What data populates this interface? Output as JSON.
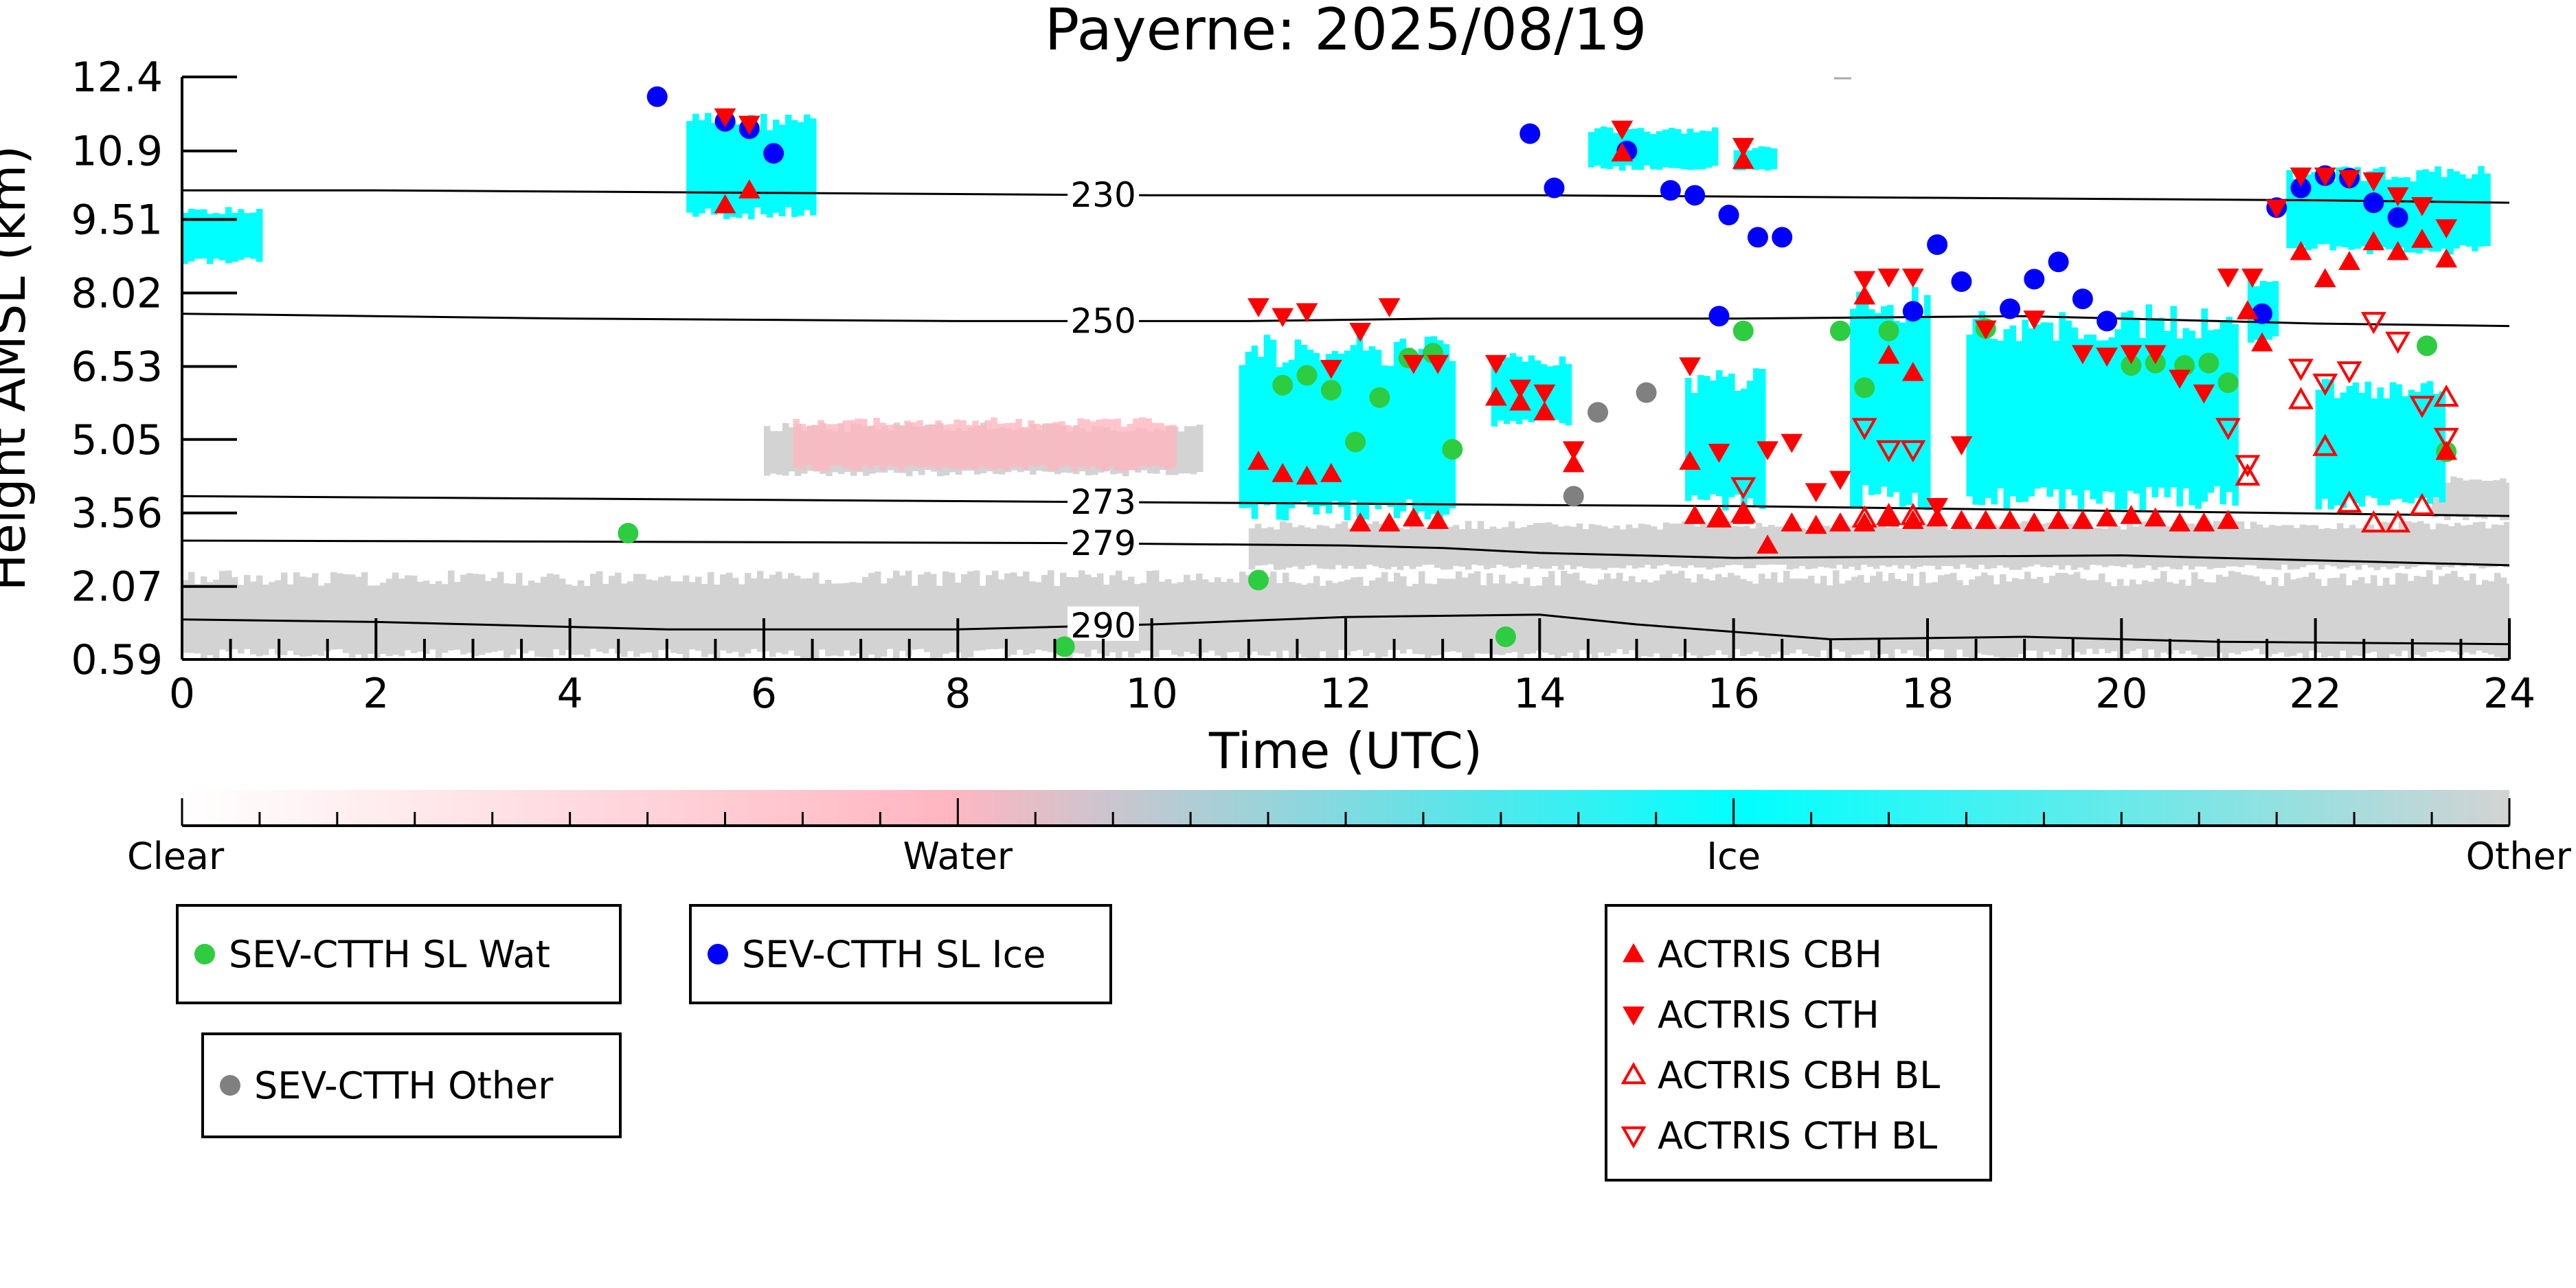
{
  "chart_data": {
    "type": "scatter",
    "title": "Payerne: 2025/08/19",
    "xlabel": "Time (UTC)",
    "ylabel": "Height AMSL (km)",
    "xlim": [
      0,
      24
    ],
    "ylim": [
      0.59,
      12.4
    ],
    "x_ticks": [
      0,
      2,
      4,
      6,
      8,
      10,
      12,
      14,
      16,
      18,
      20,
      22,
      24
    ],
    "y_ticks": [
      0.59,
      2.07,
      3.56,
      5.05,
      6.53,
      8.02,
      9.51,
      10.9,
      12.4
    ],
    "y_tick_labels": [
      "0.59",
      "2.07",
      "3.56",
      "5.05",
      "6.53",
      "8.02",
      "9.51",
      "10.9",
      "12.4"
    ],
    "colorbar": {
      "labels": [
        "Clear",
        "Water",
        "Ice",
        "Other"
      ],
      "colors": [
        "#ffffff",
        "#ffb6c1",
        "#00ffff",
        "#d3d3d3"
      ]
    },
    "cloud_regions": [
      {
        "class": "Ice",
        "x0": 5.2,
        "x1": 6.5,
        "y0": 9.5,
        "y1": 11.7
      },
      {
        "class": "Ice",
        "x0": 0.0,
        "x1": 0.8,
        "y0": 8.6,
        "y1": 9.8
      },
      {
        "class": "Ice",
        "x0": 10.9,
        "x1": 13.1,
        "y0": 3.4,
        "y1": 7.2
      },
      {
        "class": "Ice",
        "x0": 13.5,
        "x1": 14.3,
        "y0": 5.3,
        "y1": 6.8
      },
      {
        "class": "Ice",
        "x0": 15.5,
        "x1": 16.3,
        "y0": 3.6,
        "y1": 6.5
      },
      {
        "class": "Ice",
        "x0": 17.2,
        "x1": 18.0,
        "y0": 3.6,
        "y1": 8.2
      },
      {
        "class": "Ice",
        "x0": 18.4,
        "x1": 21.2,
        "y0": 3.6,
        "y1": 7.8
      },
      {
        "class": "Ice",
        "x0": 21.3,
        "x1": 21.6,
        "y0": 7.0,
        "y1": 8.3
      },
      {
        "class": "Ice",
        "x0": 21.7,
        "x1": 23.8,
        "y0": 8.8,
        "y1": 10.6
      },
      {
        "class": "Ice",
        "x0": 22.0,
        "x1": 23.3,
        "y0": 3.6,
        "y1": 6.3
      },
      {
        "class": "Ice",
        "x0": 14.5,
        "x1": 15.8,
        "y0": 10.5,
        "y1": 11.4
      },
      {
        "class": "Ice",
        "x0": 16.0,
        "x1": 16.4,
        "y0": 10.5,
        "y1": 11.0
      },
      {
        "class": "Water",
        "x0": 6.3,
        "x1": 10.2,
        "y0": 4.4,
        "y1": 5.5
      },
      {
        "class": "Other",
        "x0": 6.0,
        "x1": 10.5,
        "y0": 4.3,
        "y1": 5.4
      },
      {
        "class": "Other",
        "x0": 0.0,
        "x1": 24.0,
        "y0": 0.59,
        "y1": 2.4
      },
      {
        "class": "Other",
        "x0": 11.0,
        "x1": 24.0,
        "y0": 2.4,
        "y1": 3.4
      },
      {
        "class": "Other",
        "x0": 23.2,
        "x1": 24.0,
        "y0": 3.4,
        "y1": 4.3
      }
    ],
    "contours": [
      {
        "label": "230",
        "label_x": 9.5,
        "points": [
          [
            0,
            10.1
          ],
          [
            2,
            10.1
          ],
          [
            6,
            10.05
          ],
          [
            10,
            10.0
          ],
          [
            14,
            10.0
          ],
          [
            18,
            9.95
          ],
          [
            22,
            9.9
          ],
          [
            24,
            9.85
          ]
        ]
      },
      {
        "label": "250",
        "label_x": 9.5,
        "points": [
          [
            0,
            7.6
          ],
          [
            4,
            7.5
          ],
          [
            8,
            7.45
          ],
          [
            11,
            7.45
          ],
          [
            13,
            7.5
          ],
          [
            16,
            7.5
          ],
          [
            19,
            7.55
          ],
          [
            22,
            7.4
          ],
          [
            24,
            7.35
          ]
        ]
      },
      {
        "label": "273",
        "label_x": 9.5,
        "points": [
          [
            0,
            3.9
          ],
          [
            4,
            3.85
          ],
          [
            8,
            3.8
          ],
          [
            12,
            3.75
          ],
          [
            14,
            3.72
          ],
          [
            16,
            3.7
          ],
          [
            20,
            3.6
          ],
          [
            24,
            3.5
          ]
        ]
      },
      {
        "label": "279",
        "label_x": 9.5,
        "points": [
          [
            0,
            3.0
          ],
          [
            4,
            2.98
          ],
          [
            9,
            2.95
          ],
          [
            12,
            2.9
          ],
          [
            13,
            2.85
          ],
          [
            14,
            2.75
          ],
          [
            16,
            2.65
          ],
          [
            20,
            2.7
          ],
          [
            22,
            2.6
          ],
          [
            24,
            2.5
          ]
        ]
      },
      {
        "label": "290",
        "label_x": 9.5,
        "points": [
          [
            0,
            1.4
          ],
          [
            2,
            1.35
          ],
          [
            5,
            1.2
          ],
          [
            8,
            1.2
          ],
          [
            10,
            1.3
          ],
          [
            12,
            1.45
          ],
          [
            14,
            1.5
          ],
          [
            15,
            1.3
          ],
          [
            17,
            1.0
          ],
          [
            19,
            1.05
          ],
          [
            21,
            0.95
          ],
          [
            24,
            0.9
          ]
        ]
      }
    ],
    "series": [
      {
        "name": "SEV-CTTH SL Wat",
        "marker": "circle",
        "color": "#2ecc40",
        "points": [
          [
            4.6,
            3.15
          ],
          [
            9.1,
            0.85
          ],
          [
            11.1,
            2.2
          ],
          [
            11.35,
            6.15
          ],
          [
            11.6,
            6.35
          ],
          [
            11.85,
            6.05
          ],
          [
            12.1,
            5.0
          ],
          [
            12.35,
            5.9
          ],
          [
            12.65,
            6.7
          ],
          [
            12.9,
            6.8
          ],
          [
            13.1,
            4.85
          ],
          [
            13.65,
            1.05
          ],
          [
            16.1,
            7.25
          ],
          [
            17.1,
            7.25
          ],
          [
            17.35,
            6.1
          ],
          [
            17.6,
            7.25
          ],
          [
            18.6,
            7.3
          ],
          [
            20.1,
            6.55
          ],
          [
            20.35,
            6.6
          ],
          [
            20.65,
            6.55
          ],
          [
            20.9,
            6.6
          ],
          [
            21.1,
            6.2
          ],
          [
            23.15,
            6.95
          ],
          [
            23.35,
            4.8
          ]
        ]
      },
      {
        "name": "SEV-CTTH SL Ice",
        "marker": "circle",
        "color": "#0000ff",
        "points": [
          [
            4.9,
            12.0
          ],
          [
            5.6,
            11.5
          ],
          [
            5.85,
            11.35
          ],
          [
            6.1,
            10.85
          ],
          [
            13.9,
            11.25
          ],
          [
            14.15,
            10.15
          ],
          [
            14.9,
            10.9
          ],
          [
            15.35,
            10.1
          ],
          [
            15.6,
            10.0
          ],
          [
            15.85,
            7.55
          ],
          [
            15.95,
            9.6
          ],
          [
            16.25,
            9.15
          ],
          [
            16.5,
            9.15
          ],
          [
            17.85,
            7.65
          ],
          [
            18.1,
            9.0
          ],
          [
            18.35,
            8.25
          ],
          [
            18.85,
            7.7
          ],
          [
            19.1,
            8.3
          ],
          [
            19.35,
            8.65
          ],
          [
            19.6,
            7.9
          ],
          [
            19.85,
            7.45
          ],
          [
            21.45,
            7.6
          ],
          [
            21.6,
            9.75
          ],
          [
            21.85,
            10.15
          ],
          [
            22.1,
            10.4
          ],
          [
            22.35,
            10.35
          ],
          [
            22.6,
            9.85
          ],
          [
            22.85,
            9.55
          ]
        ]
      },
      {
        "name": "SEV-CTTH Other",
        "marker": "circle",
        "color": "#808080",
        "points": [
          [
            14.35,
            3.9
          ],
          [
            14.6,
            5.6
          ],
          [
            15.1,
            6.0
          ]
        ]
      },
      {
        "name": "ACTRIS CBH",
        "marker": "triangle-up",
        "color": "#ff0000",
        "filled": true,
        "points": [
          [
            5.6,
            9.8
          ],
          [
            5.85,
            10.1
          ],
          [
            14.85,
            10.85
          ],
          [
            16.1,
            10.7
          ],
          [
            11.1,
            4.6
          ],
          [
            11.35,
            4.35
          ],
          [
            11.6,
            4.3
          ],
          [
            11.85,
            4.35
          ],
          [
            12.15,
            3.35
          ],
          [
            12.45,
            3.35
          ],
          [
            12.7,
            3.45
          ],
          [
            12.95,
            3.4
          ],
          [
            13.55,
            5.9
          ],
          [
            13.8,
            5.8
          ],
          [
            14.05,
            5.6
          ],
          [
            14.35,
            4.55
          ],
          [
            15.55,
            4.6
          ],
          [
            15.6,
            3.5
          ],
          [
            15.85,
            3.45
          ],
          [
            16.1,
            3.5
          ],
          [
            16.35,
            2.9
          ],
          [
            16.6,
            3.35
          ],
          [
            16.85,
            3.3
          ],
          [
            17.1,
            3.35
          ],
          [
            17.35,
            3.35
          ],
          [
            17.35,
            7.95
          ],
          [
            17.6,
            3.45
          ],
          [
            17.6,
            6.75
          ],
          [
            17.85,
            3.4
          ],
          [
            17.85,
            6.4
          ],
          [
            18.1,
            3.45
          ],
          [
            18.35,
            3.4
          ],
          [
            18.6,
            3.4
          ],
          [
            18.85,
            3.4
          ],
          [
            19.1,
            3.35
          ],
          [
            19.35,
            3.4
          ],
          [
            19.6,
            3.4
          ],
          [
            19.85,
            3.45
          ],
          [
            20.1,
            3.5
          ],
          [
            20.35,
            3.45
          ],
          [
            20.6,
            3.35
          ],
          [
            20.85,
            3.35
          ],
          [
            21.1,
            3.4
          ],
          [
            21.3,
            7.65
          ],
          [
            21.45,
            7.0
          ],
          [
            21.85,
            8.85
          ],
          [
            22.1,
            8.3
          ],
          [
            22.35,
            8.65
          ],
          [
            22.6,
            9.05
          ],
          [
            22.85,
            8.85
          ],
          [
            23.1,
            9.1
          ],
          [
            23.35,
            8.7
          ],
          [
            23.35,
            4.8
          ]
        ]
      },
      {
        "name": "ACTRIS CTH",
        "marker": "triangle-down",
        "color": "#ff0000",
        "filled": true,
        "points": [
          [
            5.6,
            11.6
          ],
          [
            5.85,
            11.45
          ],
          [
            14.85,
            11.35
          ],
          [
            16.1,
            11.0
          ],
          [
            11.1,
            7.75
          ],
          [
            11.35,
            7.55
          ],
          [
            11.6,
            7.65
          ],
          [
            11.85,
            6.5
          ],
          [
            12.15,
            7.25
          ],
          [
            12.45,
            7.75
          ],
          [
            12.7,
            6.6
          ],
          [
            12.95,
            6.6
          ],
          [
            13.55,
            6.6
          ],
          [
            13.8,
            6.1
          ],
          [
            14.05,
            6.0
          ],
          [
            14.35,
            4.85
          ],
          [
            15.55,
            6.55
          ],
          [
            15.85,
            4.8
          ],
          [
            16.35,
            4.85
          ],
          [
            16.6,
            5.0
          ],
          [
            16.85,
            4.0
          ],
          [
            17.1,
            4.25
          ],
          [
            17.35,
            8.3
          ],
          [
            17.6,
            8.35
          ],
          [
            17.85,
            8.35
          ],
          [
            18.1,
            3.7
          ],
          [
            18.35,
            4.95
          ],
          [
            18.6,
            7.3
          ],
          [
            19.1,
            7.5
          ],
          [
            19.6,
            6.8
          ],
          [
            19.85,
            6.75
          ],
          [
            20.1,
            6.8
          ],
          [
            20.35,
            6.8
          ],
          [
            20.6,
            6.3
          ],
          [
            20.85,
            6.0
          ],
          [
            21.1,
            8.35
          ],
          [
            21.35,
            8.35
          ],
          [
            21.6,
            9.75
          ],
          [
            21.85,
            10.4
          ],
          [
            22.1,
            10.4
          ],
          [
            22.35,
            10.35
          ],
          [
            22.6,
            10.3
          ],
          [
            22.85,
            10.0
          ],
          [
            23.1,
            9.8
          ],
          [
            23.35,
            9.35
          ]
        ]
      },
      {
        "name": "ACTRIS CBH BL",
        "marker": "triangle-up",
        "color": "#ff0000",
        "filled": false,
        "points": [
          [
            15.85,
            3.45
          ],
          [
            16.1,
            3.55
          ],
          [
            17.35,
            3.45
          ],
          [
            17.6,
            3.5
          ],
          [
            17.85,
            3.5
          ],
          [
            21.3,
            4.3
          ],
          [
            21.85,
            5.85
          ],
          [
            22.1,
            4.9
          ],
          [
            22.35,
            3.75
          ],
          [
            22.6,
            3.35
          ],
          [
            22.85,
            3.35
          ],
          [
            23.1,
            3.7
          ],
          [
            23.35,
            5.9
          ]
        ]
      },
      {
        "name": "ACTRIS CTH BL",
        "marker": "triangle-down",
        "color": "#ff0000",
        "filled": false,
        "points": [
          [
            16.1,
            4.1
          ],
          [
            17.35,
            5.3
          ],
          [
            17.6,
            4.85
          ],
          [
            17.85,
            4.85
          ],
          [
            21.1,
            5.3
          ],
          [
            21.3,
            4.55
          ],
          [
            21.85,
            6.5
          ],
          [
            22.1,
            6.2
          ],
          [
            22.35,
            6.45
          ],
          [
            22.6,
            7.45
          ],
          [
            22.85,
            7.05
          ],
          [
            23.1,
            5.75
          ],
          [
            23.35,
            5.1
          ]
        ]
      }
    ],
    "legends": [
      {
        "entries": [
          "SEV-CTTH SL Wat"
        ]
      },
      {
        "entries": [
          "SEV-CTTH SL Ice"
        ]
      },
      {
        "entries": [
          "SEV-CTTH Other"
        ]
      },
      {
        "entries": [
          "ACTRIS CBH",
          "ACTRIS CTH",
          "ACTRIS CBH BL",
          "ACTRIS CTH BL"
        ]
      }
    ]
  }
}
